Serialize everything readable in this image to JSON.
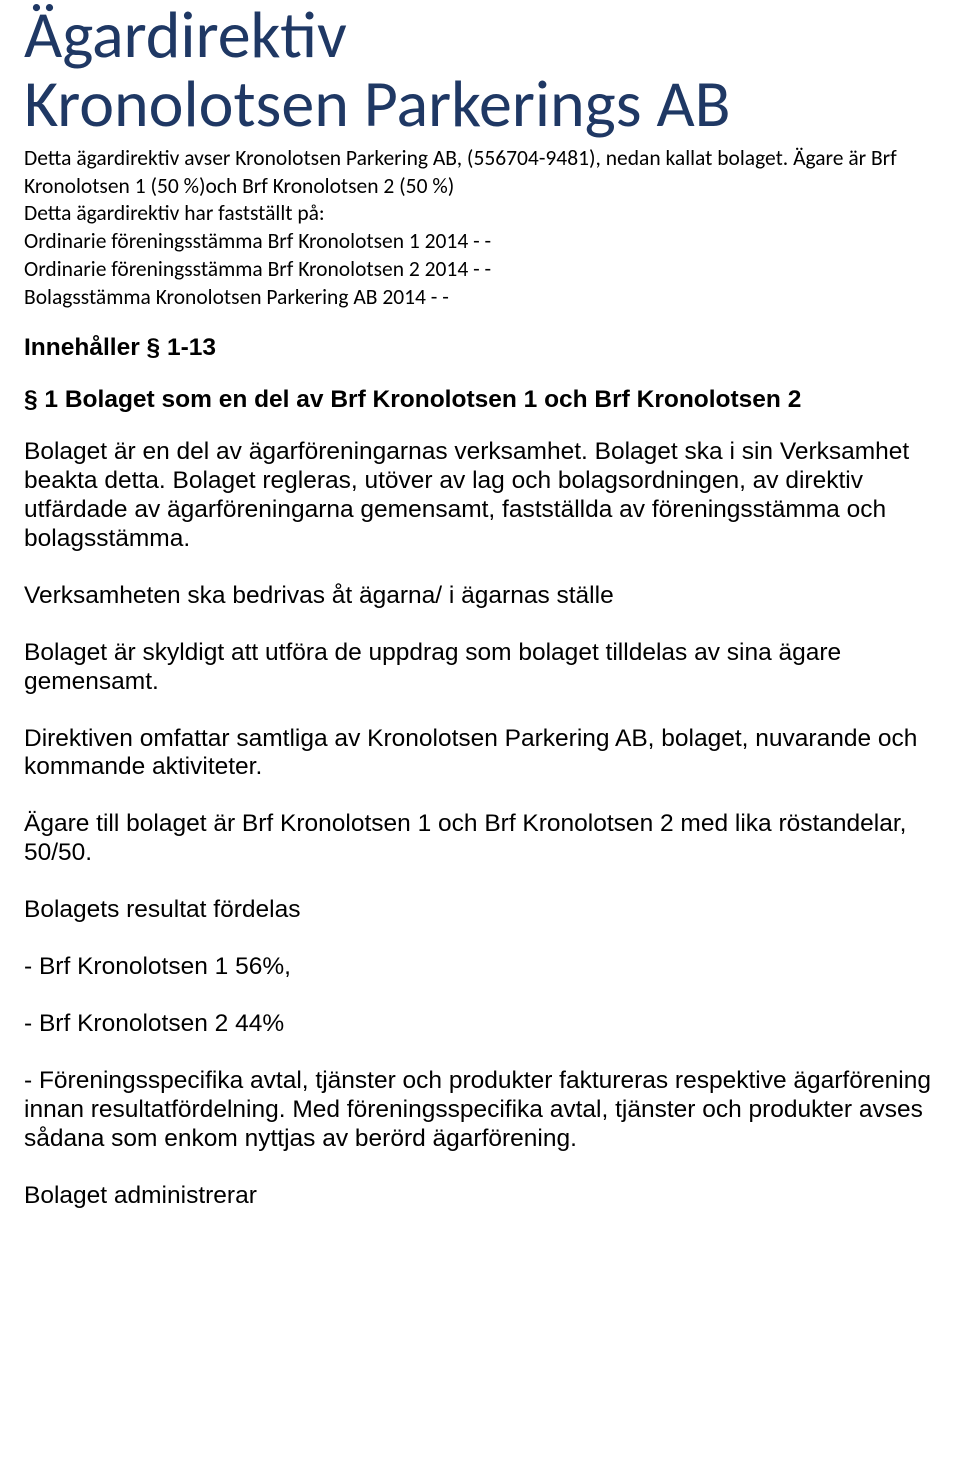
{
  "document": {
    "title_line1": "Ägardirektiv",
    "title_line2": "Kronolotsen Parkerings AB",
    "title_color": "#1f3864",
    "title_fontsize": 66,
    "intro_text": "Detta ägardirektiv avser Kronolotsen Parkering AB, (556704-9481), nedan kallat bolaget. Ägare är Brf Kronolotsen 1 (50 %)och Brf Kronolotsen 2 (50 %)\nDetta ägardirektiv har fastställt på:\nOrdinarie föreningsstämma Brf Kronolotsen 1 2014 -     -\nOrdinarie föreningsstämma Brf Kronolotsen 2 2014 -     -\nBolagsstämma Kronolotsen Parkering AB 2014 -     -",
    "intro_fontsize": 21.5,
    "contains": "Innehåller § 1-13",
    "section1_heading": "§ 1 Bolaget som en del av Brf Kronolotsen 1 och Brf Kronolotsen 2",
    "paragraphs": [
      "Bolaget är en del av ägarföreningarnas verksamhet. Bolaget ska i sin Verksamhet  beakta  detta. Bolaget regleras, utöver av lag och bolagsordningen, av direktiv utfärdade av ägarföreningarna gemensamt, fastställda av föreningsstämma och bolagsstämma.",
      "Verksamheten ska bedrivas åt ägarna/ i ägarnas ställe",
      "Bolaget är skyldigt att utföra de uppdrag som bolaget tilldelas av sina ägare gemensamt.",
      "Direktiven omfattar samtliga av Kronolotsen Parkering AB, bolaget, nuvarande och kommande aktiviteter.",
      "Ägare till bolaget är Brf Kronolotsen 1 och Brf Kronolotsen 2 med lika röstandelar, 50/50.",
      "Bolagets resultat fördelas",
      "- Brf Kronolotsen 1 56%,",
      "- Brf Kronolotsen 2 44%",
      "- Föreningsspecifika avtal, tjänster och produkter faktureras respektive ägarförening innan resultatfördelning. Med föreningsspecifika avtal, tjänster och produkter avses sådana som enkom nyttjas av berörd ägarförening.",
      "Bolaget administrerar"
    ],
    "body_fontsize": 24.5,
    "text_color": "#000000",
    "background_color": "#ffffff"
  }
}
